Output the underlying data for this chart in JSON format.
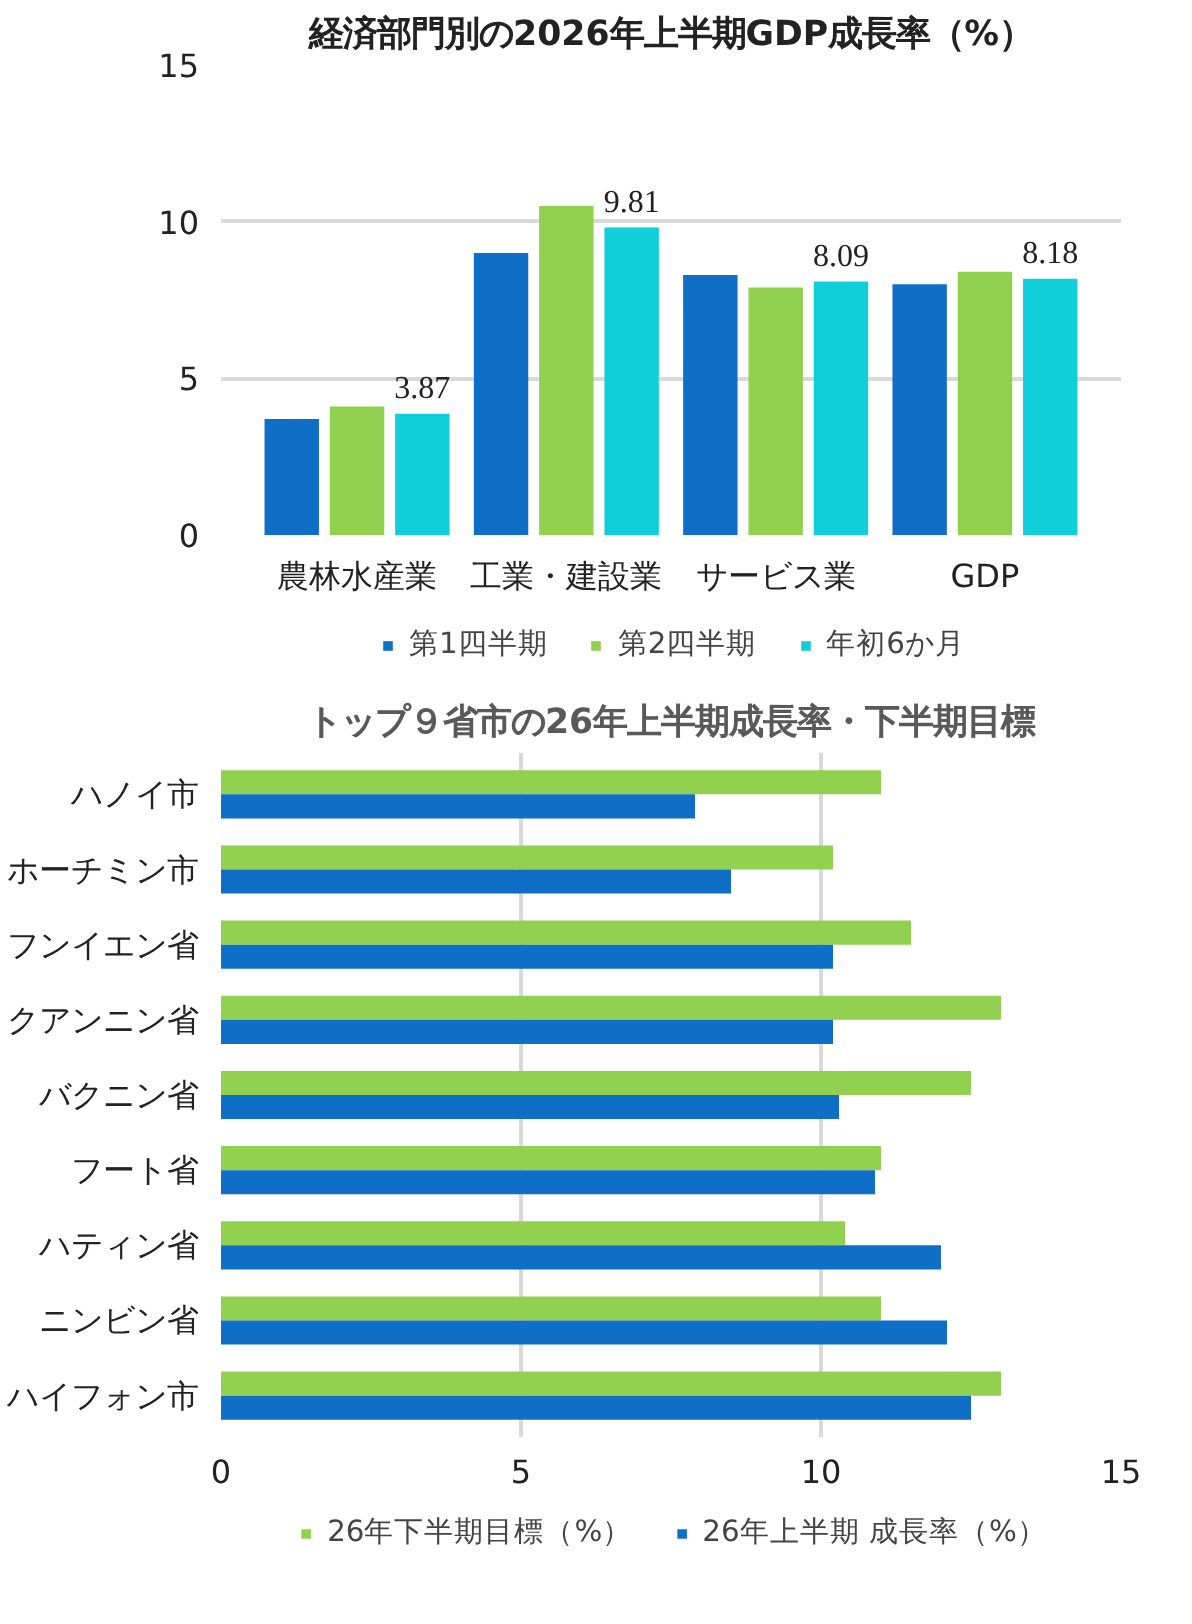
{
  "chart_data": [
    {
      "type": "bar",
      "title": "経済部門別の2026年上半期GDP成長率（%）",
      "categories": [
        "農林水産業",
        "工業・建設業",
        "サービス業",
        "GDP"
      ],
      "ylim": [
        0,
        15
      ],
      "yticks": [
        0,
        5,
        10,
        15
      ],
      "grid": "y",
      "legend": "bottom",
      "series": [
        {
          "name": "第1四半期",
          "color": "#0f6fc6",
          "values": [
            3.7,
            9.0,
            8.3,
            8.0
          ]
        },
        {
          "name": "第2四半期",
          "color": "#92d050",
          "values": [
            4.1,
            10.5,
            7.9,
            8.4
          ]
        },
        {
          "name": "年初6か月",
          "color": "#10cfd8",
          "values": [
            3.87,
            9.81,
            8.09,
            8.18
          ],
          "value_labels": [
            "3.87",
            "9.81",
            "8.09",
            "8.18"
          ]
        }
      ]
    },
    {
      "type": "bar",
      "orientation": "horizontal",
      "title": "トップ９省市の26年上半期成長率・下半期目標",
      "categories": [
        "ハノイ市",
        "ホーチミン市",
        "フンイエン省",
        "クアンニン省",
        "バクニン省",
        "フート省",
        "ハティン省",
        "ニンビン省",
        "ハイフォン市"
      ],
      "xlim": [
        0,
        15
      ],
      "xticks": [
        0,
        5,
        10,
        15
      ],
      "grid": "x",
      "legend": "bottom",
      "series": [
        {
          "name": "26年下半期目標（%）",
          "color": "#92d050",
          "values": [
            11.0,
            10.2,
            11.5,
            13.0,
            12.5,
            11.0,
            10.4,
            11.0,
            13.0
          ]
        },
        {
          "name": "26年上半期 成長率（%）",
          "color": "#0f6fc6",
          "values": [
            7.9,
            8.5,
            10.2,
            10.2,
            10.3,
            10.9,
            12.0,
            12.1,
            12.5
          ]
        }
      ]
    }
  ]
}
